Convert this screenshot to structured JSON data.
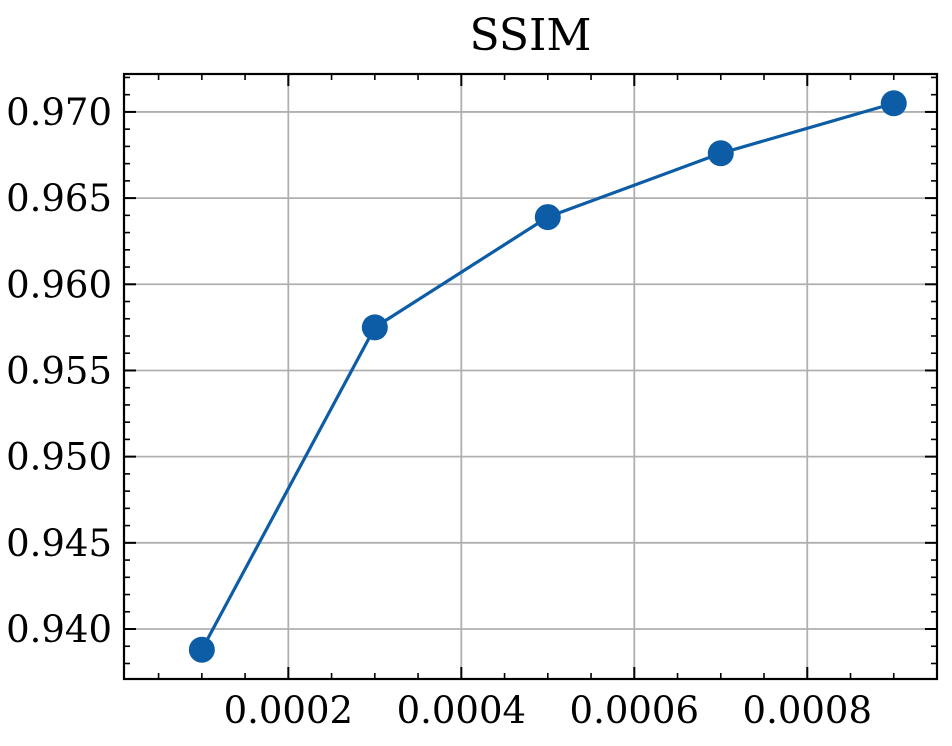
{
  "chart_data": {
    "type": "line",
    "title": "SSIM",
    "xlabel": "",
    "ylabel": "",
    "x": [
      0.0001,
      0.0003,
      0.0005,
      0.0007,
      0.0009
    ],
    "series": [
      {
        "values": [
          0.9388,
          0.9575,
          0.9639,
          0.9676,
          0.9705
        ]
      }
    ],
    "xlim": [
      1e-05,
      0.00095
    ],
    "ylim": [
      0.9371,
      0.9722
    ],
    "xticks": [
      0.0002,
      0.0004,
      0.0006,
      0.0008
    ],
    "xtick_labels": [
      "0.0002",
      "0.0004",
      "0.0006",
      "0.0008"
    ],
    "yticks": [
      0.94,
      0.945,
      0.95,
      0.955,
      0.96,
      0.965,
      0.97
    ],
    "ytick_labels": [
      "0.940",
      "0.945",
      "0.950",
      "0.955",
      "0.960",
      "0.965",
      "0.970"
    ],
    "grid": true,
    "legend": "none",
    "colors": {
      "series": "#0C5DA5",
      "grid": "#b0b0b0",
      "axes": "#000000"
    }
  }
}
